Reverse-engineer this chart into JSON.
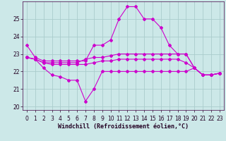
{
  "xlabel": "Windchill (Refroidissement éolien,°C)",
  "bg_color": "#cce8e8",
  "grid_color": "#aacccc",
  "line_color": "#cc00cc",
  "x_hours": [
    0,
    1,
    2,
    3,
    4,
    5,
    6,
    7,
    8,
    9,
    10,
    11,
    12,
    13,
    14,
    15,
    16,
    17,
    18,
    19,
    20,
    21,
    22,
    23
  ],
  "line1": [
    23.5,
    22.8,
    22.6,
    22.6,
    22.6,
    22.6,
    22.6,
    22.6,
    23.5,
    23.5,
    23.8,
    25.0,
    25.7,
    25.7,
    25.0,
    25.0,
    24.5,
    23.5,
    23.0,
    23.0,
    22.2,
    21.8,
    21.8,
    21.9
  ],
  "line2": [
    22.8,
    22.7,
    22.5,
    22.5,
    22.5,
    22.5,
    22.5,
    22.7,
    22.8,
    22.8,
    22.9,
    23.0,
    23.0,
    23.0,
    23.0,
    23.0,
    23.0,
    23.0,
    23.0,
    23.0,
    22.2,
    21.8,
    21.8,
    21.9
  ],
  "line3": [
    22.8,
    22.7,
    22.5,
    22.4,
    22.4,
    22.4,
    22.4,
    22.4,
    22.5,
    22.6,
    22.6,
    22.7,
    22.7,
    22.7,
    22.7,
    22.7,
    22.7,
    22.7,
    22.7,
    22.5,
    22.2,
    21.8,
    21.8,
    21.9
  ],
  "line4": [
    22.8,
    22.7,
    22.2,
    21.8,
    21.7,
    21.5,
    21.5,
    20.3,
    21.0,
    22.0,
    22.0,
    22.0,
    22.0,
    22.0,
    22.0,
    22.0,
    22.0,
    22.0,
    22.0,
    22.0,
    22.2,
    21.8,
    21.8,
    21.9
  ],
  "ylim_min": 19.8,
  "ylim_max": 26.0,
  "yticks": [
    20,
    21,
    22,
    23,
    24,
    25
  ],
  "tick_fontsize": 5.5,
  "xlabel_fontsize": 6.0
}
